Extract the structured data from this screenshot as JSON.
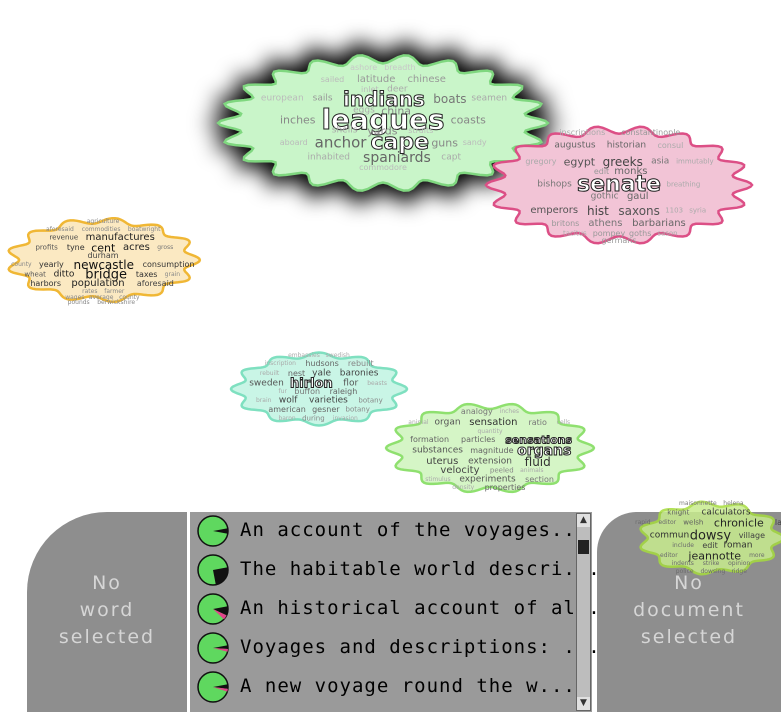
{
  "clouds": [
    {
      "id": "indians",
      "fill": "#c9f5c9",
      "stroke": "#7fd77f",
      "shadow": true,
      "words": [
        {
          "t": "ashore",
          "s": 8,
          "c": "#c8c8c8"
        },
        {
          "t": "breadth",
          "s": 8,
          "c": "#c8c8c8"
        },
        {
          "t": "sailed",
          "s": 8,
          "c": "#bbbbbb"
        },
        {
          "t": "latitude",
          "s": 10,
          "c": "#999"
        },
        {
          "t": "chinese",
          "s": 10,
          "c": "#999"
        },
        {
          "t": "inlet",
          "s": 8,
          "c": "#bbb"
        },
        {
          "t": "deer",
          "s": 9,
          "c": "#aaa"
        },
        {
          "t": "european",
          "s": 9,
          "c": "#bbb"
        },
        {
          "t": "sails",
          "s": 9,
          "c": "#999"
        },
        {
          "t": "indians",
          "s": 20,
          "c": "outline"
        },
        {
          "t": "boats",
          "s": 12,
          "c": "#777"
        },
        {
          "t": "seamen",
          "s": 9,
          "c": "#aaa"
        },
        {
          "t": "eggs",
          "s": 9,
          "c": "#aaa"
        },
        {
          "t": "china",
          "s": 11,
          "c": "#888"
        },
        {
          "t": "inches",
          "s": 11,
          "c": "#888"
        },
        {
          "t": "leagues",
          "s": 28,
          "c": "outline"
        },
        {
          "t": "coasts",
          "s": 11,
          "c": "#888"
        },
        {
          "t": "shells",
          "s": 9,
          "c": "#aaa"
        },
        {
          "t": "yards",
          "s": 11,
          "c": "#888"
        },
        {
          "t": "straits",
          "s": 8,
          "c": "#bbb"
        },
        {
          "t": "aboard",
          "s": 8,
          "c": "#bbb"
        },
        {
          "t": "anchor",
          "s": 15,
          "c": "#666"
        },
        {
          "t": "cape",
          "s": 22,
          "c": "outline"
        },
        {
          "t": "guns",
          "s": 11,
          "c": "#888"
        },
        {
          "t": "sandy",
          "s": 8,
          "c": "#bbb"
        },
        {
          "t": "inhabited",
          "s": 9,
          "c": "#aaa"
        },
        {
          "t": "spaniards",
          "s": 14,
          "c": "#666"
        },
        {
          "t": "capt",
          "s": 9,
          "c": "#aaa"
        },
        {
          "t": "commodore",
          "s": 8,
          "c": "#bbb"
        }
      ]
    },
    {
      "id": "senate",
      "fill": "#f2c4d6",
      "stroke": "#dc4f86",
      "shadow": false,
      "words": [
        {
          "t": "inscriptions",
          "s": 8,
          "c": "#aaa"
        },
        {
          "t": "constantinople",
          "s": 8,
          "c": "#999"
        },
        {
          "t": "augustus",
          "s": 9,
          "c": "#666"
        },
        {
          "t": "historian",
          "s": 9,
          "c": "#666"
        },
        {
          "t": "consul",
          "s": 8,
          "c": "#aaa"
        },
        {
          "t": "gregory",
          "s": 8,
          "c": "#aaa"
        },
        {
          "t": "egypt",
          "s": 11,
          "c": "#555"
        },
        {
          "t": "greeks",
          "s": 12,
          "c": "#444"
        },
        {
          "t": "asia",
          "s": 9,
          "c": "#777"
        },
        {
          "t": "immutably",
          "s": 7,
          "c": "#aaa"
        },
        {
          "t": "edit",
          "s": 8,
          "c": "#999"
        },
        {
          "t": "monks",
          "s": 10,
          "c": "#666"
        },
        {
          "t": "bishops",
          "s": 9,
          "c": "#777"
        },
        {
          "t": "senate",
          "s": 22,
          "c": "outline"
        },
        {
          "t": "breathing",
          "s": 7,
          "c": "#aaa"
        },
        {
          "t": "gothic",
          "s": 9,
          "c": "#777"
        },
        {
          "t": "gaul",
          "s": 10,
          "c": "#666"
        },
        {
          "t": "emperors",
          "s": 10,
          "c": "#555"
        },
        {
          "t": "hist",
          "s": 12,
          "c": "#444"
        },
        {
          "t": "saxons",
          "s": 12,
          "c": "#555"
        },
        {
          "t": "1103",
          "s": 7,
          "c": "#aaa"
        },
        {
          "t": "syria",
          "s": 7,
          "c": "#aaa"
        },
        {
          "t": "britons",
          "s": 8,
          "c": "#999"
        },
        {
          "t": "athens",
          "s": 10,
          "c": "#777"
        },
        {
          "t": "barbarians",
          "s": 10,
          "c": "#666"
        },
        {
          "t": "tacitus",
          "s": 7,
          "c": "#aaa"
        },
        {
          "t": "pompey",
          "s": 8,
          "c": "#999"
        },
        {
          "t": "goths",
          "s": 8,
          "c": "#999"
        },
        {
          "t": "sason",
          "s": 7,
          "c": "#aaa"
        },
        {
          "t": "germans",
          "s": 8,
          "c": "#999"
        }
      ]
    },
    {
      "id": "bridge",
      "fill": "#fbe9c2",
      "stroke": "#f0b735",
      "shadow": false,
      "words": [
        {
          "t": "agriculture",
          "s": 6,
          "c": "#888"
        },
        {
          "t": "aforesaid",
          "s": 6,
          "c": "#888"
        },
        {
          "t": "commodities",
          "s": 6,
          "c": "#888"
        },
        {
          "t": "boatwright",
          "s": 6,
          "c": "#888"
        },
        {
          "t": "revenue",
          "s": 7,
          "c": "#444"
        },
        {
          "t": "manufactures",
          "s": 10,
          "c": "#222"
        },
        {
          "t": "profits",
          "s": 7,
          "c": "#555"
        },
        {
          "t": "tyne",
          "s": 8,
          "c": "#333"
        },
        {
          "t": "cent",
          "s": 11,
          "c": "#111"
        },
        {
          "t": "acres",
          "s": 10,
          "c": "#222"
        },
        {
          "t": "gross",
          "s": 6,
          "c": "#777"
        },
        {
          "t": "durham",
          "s": 8,
          "c": "#444"
        },
        {
          "t": "county",
          "s": 6,
          "c": "#888"
        },
        {
          "t": "yearly",
          "s": 8,
          "c": "#333"
        },
        {
          "t": "newcastle",
          "s": 12,
          "c": "#111"
        },
        {
          "t": "consumption",
          "s": 8,
          "c": "#333"
        },
        {
          "t": "wheat",
          "s": 7,
          "c": "#555"
        },
        {
          "t": "ditto",
          "s": 9,
          "c": "#222"
        },
        {
          "t": "bridge",
          "s": 13,
          "c": "#111"
        },
        {
          "t": "taxes",
          "s": 8,
          "c": "#333"
        },
        {
          "t": "grain",
          "s": 6,
          "c": "#888"
        },
        {
          "t": "harbors",
          "s": 8,
          "c": "#333"
        },
        {
          "t": "population",
          "s": 10,
          "c": "#222"
        },
        {
          "t": "aforesaid",
          "s": 8,
          "c": "#444"
        },
        {
          "t": "rates",
          "s": 6,
          "c": "#888"
        },
        {
          "t": "farmer",
          "s": 6,
          "c": "#888"
        },
        {
          "t": "wages",
          "s": 6,
          "c": "#888"
        },
        {
          "t": "average",
          "s": 6,
          "c": "#888"
        },
        {
          "t": "county",
          "s": 6,
          "c": "#888"
        },
        {
          "t": "pounds",
          "s": 6,
          "c": "#888"
        },
        {
          "t": "berwickshire",
          "s": 6,
          "c": "#888"
        }
      ]
    },
    {
      "id": "hirlon",
      "fill": "#c9f5e6",
      "stroke": "#7fe0c0",
      "shadow": false,
      "words": [
        {
          "t": "embassies",
          "s": 6,
          "c": "#aaa"
        },
        {
          "t": "swedish",
          "s": 6,
          "c": "#aaa"
        },
        {
          "t": "inscription",
          "s": 6,
          "c": "#aaa"
        },
        {
          "t": "hudsons",
          "s": 8,
          "c": "#666"
        },
        {
          "t": "rebuilt",
          "s": 8,
          "c": "#888"
        },
        {
          "t": "rebuilt",
          "s": 6,
          "c": "#aaa"
        },
        {
          "t": "nest",
          "s": 8,
          "c": "#666"
        },
        {
          "t": "yale",
          "s": 9,
          "c": "#444"
        },
        {
          "t": "baronies",
          "s": 9,
          "c": "#444"
        },
        {
          "t": "sweden",
          "s": 9,
          "c": "#555"
        },
        {
          "t": "hirlon",
          "s": 13,
          "c": "outline"
        },
        {
          "t": "flor",
          "s": 9,
          "c": "#555"
        },
        {
          "t": "beasts",
          "s": 6,
          "c": "#aaa"
        },
        {
          "t": "fur",
          "s": 6,
          "c": "#aaa"
        },
        {
          "t": "buffon",
          "s": 8,
          "c": "#777"
        },
        {
          "t": "raleigh",
          "s": 8,
          "c": "#666"
        },
        {
          "t": "brain",
          "s": 6,
          "c": "#aaa"
        },
        {
          "t": "wolf",
          "s": 9,
          "c": "#444"
        },
        {
          "t": "varieties",
          "s": 9,
          "c": "#444"
        },
        {
          "t": "botany",
          "s": 7,
          "c": "#888"
        },
        {
          "t": "american",
          "s": 8,
          "c": "#666"
        },
        {
          "t": "gesner",
          "s": 8,
          "c": "#666"
        },
        {
          "t": "botany",
          "s": 7,
          "c": "#888"
        },
        {
          "t": "baron",
          "s": 6,
          "c": "#aaa"
        },
        {
          "t": "during",
          "s": 7,
          "c": "#888"
        },
        {
          "t": "invasion",
          "s": 6,
          "c": "#aaa"
        }
      ]
    },
    {
      "id": "organs",
      "fill": "#d5f5c6",
      "stroke": "#8fe06f",
      "shadow": false,
      "words": [
        {
          "t": "analogy",
          "s": 8,
          "c": "#777"
        },
        {
          "t": "inches",
          "s": 6,
          "c": "#aaa"
        },
        {
          "t": "animal",
          "s": 6,
          "c": "#aaa"
        },
        {
          "t": "organ",
          "s": 9,
          "c": "#555"
        },
        {
          "t": "sensation",
          "s": 10,
          "c": "#333"
        },
        {
          "t": "ratio",
          "s": 8,
          "c": "#777"
        },
        {
          "t": "cells",
          "s": 6,
          "c": "#aaa"
        },
        {
          "t": "quantity",
          "s": 6,
          "c": "#aaa"
        },
        {
          "t": "formation",
          "s": 8,
          "c": "#666"
        },
        {
          "t": "particles",
          "s": 8,
          "c": "#666"
        },
        {
          "t": "sensations",
          "s": 11,
          "c": "outline"
        },
        {
          "t": "substances",
          "s": 9,
          "c": "#555"
        },
        {
          "t": "magnitude",
          "s": 8,
          "c": "#666"
        },
        {
          "t": "organs",
          "s": 14,
          "c": "outline"
        },
        {
          "t": "uterus",
          "s": 10,
          "c": "#444"
        },
        {
          "t": "extension",
          "s": 9,
          "c": "#555"
        },
        {
          "t": "fluid",
          "s": 12,
          "c": "#333"
        },
        {
          "t": "velocity",
          "s": 10,
          "c": "#444"
        },
        {
          "t": "peeled",
          "s": 7,
          "c": "#888"
        },
        {
          "t": "animals",
          "s": 6,
          "c": "#aaa"
        },
        {
          "t": "stimulus",
          "s": 6,
          "c": "#aaa"
        },
        {
          "t": "experiments",
          "s": 9,
          "c": "#555"
        },
        {
          "t": "section",
          "s": 8,
          "c": "#777"
        },
        {
          "t": "density",
          "s": 6,
          "c": "#aaa"
        },
        {
          "t": "properties",
          "s": 8,
          "c": "#666"
        },
        {
          "t": "diameter",
          "s": 6,
          "c": "#aaa"
        }
      ]
    },
    {
      "id": "jeannotte",
      "fill": "#c8ec8f",
      "stroke": "#a6dc3e",
      "shadow": false,
      "words": [
        {
          "t": "maisonnette",
          "s": 6,
          "c": "#666"
        },
        {
          "t": "helena",
          "s": 6,
          "c": "#666"
        },
        {
          "t": "knight",
          "s": 7,
          "c": "#555"
        },
        {
          "t": "calculators",
          "s": 9,
          "c": "#222"
        },
        {
          "t": "rapid",
          "s": 6,
          "c": "#666"
        },
        {
          "t": "editor",
          "s": 6,
          "c": "#666"
        },
        {
          "t": "welsh",
          "s": 7,
          "c": "#555"
        },
        {
          "t": "chronicle",
          "s": 11,
          "c": "#111"
        },
        {
          "t": "lau",
          "s": 8,
          "c": "#333"
        },
        {
          "t": "commun",
          "s": 9,
          "c": "#222"
        },
        {
          "t": "dowsy",
          "s": 13,
          "c": "#111"
        },
        {
          "t": "village",
          "s": 8,
          "c": "#333"
        },
        {
          "t": "include",
          "s": 6,
          "c": "#666"
        },
        {
          "t": "edit",
          "s": 8,
          "c": "#333"
        },
        {
          "t": "roman",
          "s": 9,
          "c": "#222"
        },
        {
          "t": "editor",
          "s": 6,
          "c": "#666"
        },
        {
          "t": "jeannotte",
          "s": 11,
          "c": "#111"
        },
        {
          "t": "more",
          "s": 6,
          "c": "#666"
        },
        {
          "t": "indents",
          "s": 6,
          "c": "#666"
        },
        {
          "t": "strike",
          "s": 6,
          "c": "#666"
        },
        {
          "t": "opinion",
          "s": 6,
          "c": "#666"
        },
        {
          "t": "police",
          "s": 6,
          "c": "#666"
        },
        {
          "t": "dowsing",
          "s": 6,
          "c": "#666"
        },
        {
          "t": "ridge",
          "s": 6,
          "c": "#666"
        }
      ]
    }
  ],
  "word_panel": {
    "line1": "No",
    "line2": "word",
    "line3": "selected"
  },
  "doc_panel": {
    "line1": "No",
    "line2": "document",
    "line3": "selected"
  },
  "documents": [
    {
      "title": "An account of the voyages...",
      "pie": {
        "black": 0.06,
        "pink": 0.0
      }
    },
    {
      "title": "The habitable world descri...",
      "pie": {
        "black": 0.25,
        "pink": 0.0
      }
    },
    {
      "title": "An historical account of al...",
      "pie": {
        "black": 0.1,
        "pink": 0.05
      }
    },
    {
      "title": "Voyages and descriptions: ...",
      "pie": {
        "black": 0.04,
        "pink": 0.03
      }
    },
    {
      "title": "A new voyage round the w...",
      "pie": {
        "black": 0.05,
        "pink": 0.03
      }
    }
  ],
  "scrollbar": {
    "up_icon": "▲",
    "down_icon": "▼"
  }
}
